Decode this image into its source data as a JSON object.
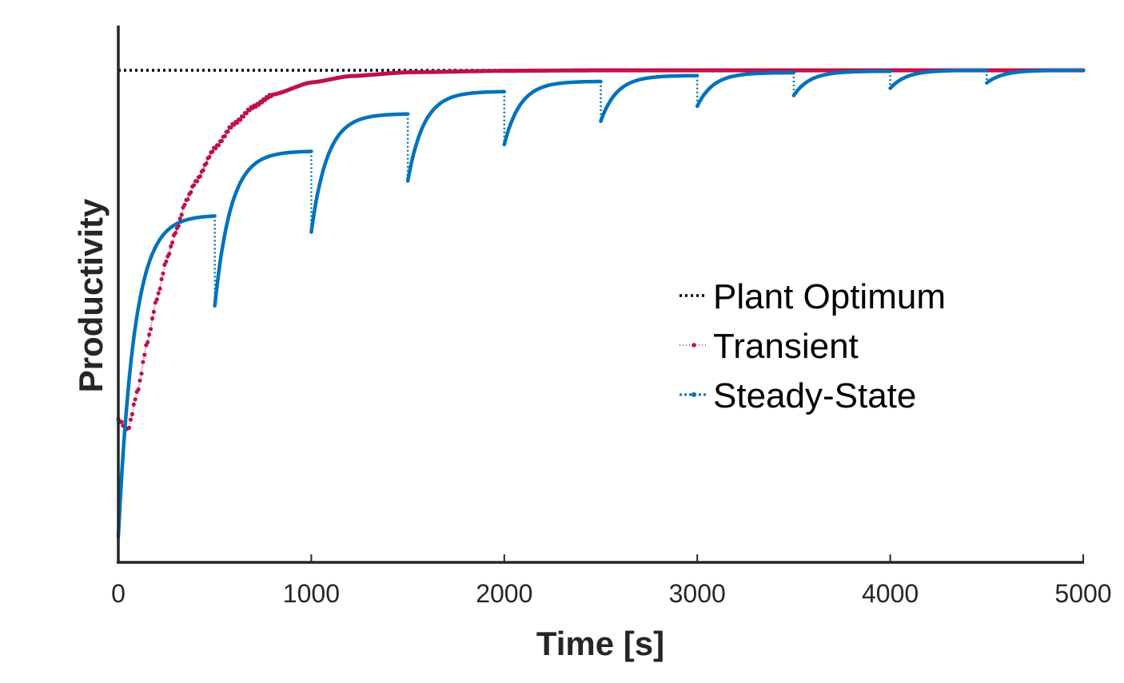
{
  "chart_data": {
    "type": "line",
    "title": "",
    "xlabel": "Time [s]",
    "ylabel": "Productivity",
    "xlim": [
      0,
      5000
    ],
    "ylim": [
      0,
      1
    ],
    "x_ticks": [
      0,
      1000,
      2000,
      3000,
      4000,
      5000
    ],
    "y_ticks_visible": false,
    "grid": false,
    "legend_position": "center-right",
    "colors": {
      "plant_optimum": "#000000",
      "transient": "#c0104a",
      "steady_state": "#0072bd"
    },
    "series": [
      {
        "name": "Plant Optimum",
        "style": "dotted",
        "x": [
          0,
          5000
        ],
        "y": [
          0.99,
          0.99
        ]
      },
      {
        "name": "Transient",
        "style": "dotted-markers",
        "x": [
          0,
          50,
          100,
          150,
          200,
          250,
          300,
          350,
          400,
          500,
          600,
          700,
          800,
          1000,
          1200,
          1500,
          2000,
          2500,
          3000,
          4000,
          5000
        ],
        "y": [
          0.27,
          0.25,
          0.33,
          0.43,
          0.52,
          0.6,
          0.66,
          0.72,
          0.76,
          0.83,
          0.88,
          0.915,
          0.94,
          0.965,
          0.978,
          0.986,
          0.989,
          0.99,
          0.99,
          0.99,
          0.99
        ]
      },
      {
        "name": "Steady-State",
        "style": "solid-markers-dotted-jumps",
        "segments": [
          {
            "x0": 0,
            "x1": 500,
            "y_start": 0.03,
            "y_end": 0.69
          },
          {
            "x0": 500,
            "x1": 1000,
            "y_start": 0.505,
            "y_end": 0.823
          },
          {
            "x0": 1000,
            "x1": 1500,
            "y_start": 0.657,
            "y_end": 0.9
          },
          {
            "x0": 1500,
            "x1": 2000,
            "y_start": 0.762,
            "y_end": 0.946
          },
          {
            "x0": 2000,
            "x1": 2500,
            "y_start": 0.837,
            "y_end": 0.967
          },
          {
            "x0": 2500,
            "x1": 3000,
            "y_start": 0.885,
            "y_end": 0.979
          },
          {
            "x0": 3000,
            "x1": 3500,
            "y_start": 0.916,
            "y_end": 0.985
          },
          {
            "x0": 3500,
            "x1": 4000,
            "y_start": 0.938,
            "y_end": 0.988
          },
          {
            "x0": 4000,
            "x1": 4500,
            "y_start": 0.953,
            "y_end": 0.99
          },
          {
            "x0": 4500,
            "x1": 5000,
            "y_start": 0.964,
            "y_end": 0.99
          }
        ]
      }
    ]
  }
}
